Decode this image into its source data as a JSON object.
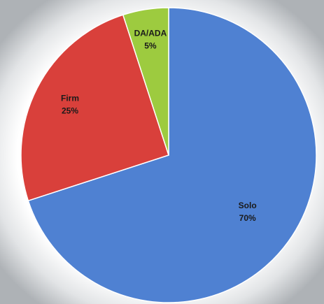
{
  "chart_data": {
    "type": "pie",
    "categories": [
      "Solo",
      "Firm",
      "DA/ADA"
    ],
    "values": [
      70,
      25,
      5
    ],
    "value_labels": [
      "70%",
      "25%",
      "5%"
    ],
    "colors": [
      "#4f81d2",
      "#d9403b",
      "#9dcb3f"
    ]
  }
}
